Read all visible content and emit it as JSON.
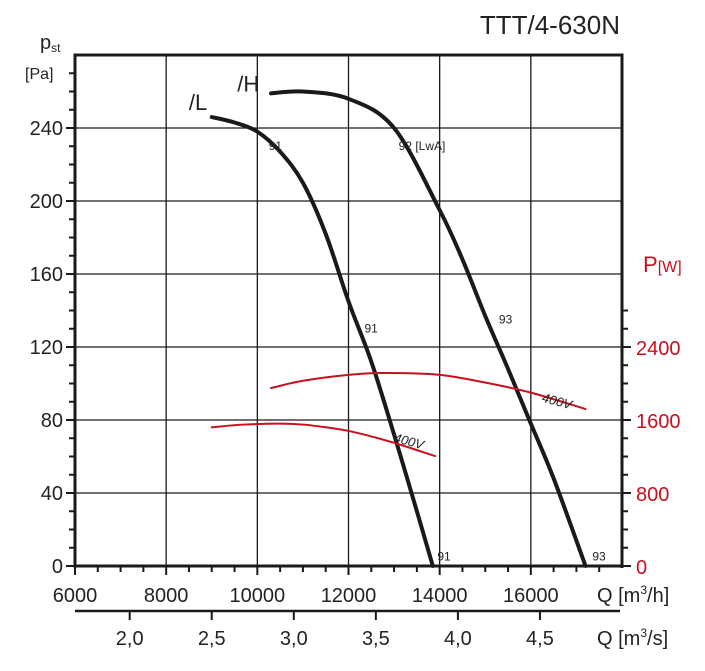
{
  "chart_data": {
    "type": "line",
    "title": "TTT/4-630N",
    "xlabel": "Q [m³/h]",
    "xlabel_secondary": "Q [m³/s]",
    "ylabel": "p st [Pa]",
    "ylabel_right": "P[W]",
    "xlim": [
      6000,
      18000
    ],
    "ylim": [
      0,
      280
    ],
    "ylim_right": [
      0,
      5600
    ],
    "grid": true,
    "x_ticks": [
      "6000",
      "8000",
      "10000",
      "12000",
      "14000",
      "16000"
    ],
    "x_tick_values": [
      6000,
      8000,
      10000,
      12000,
      14000,
      16000
    ],
    "x2_ticks": [
      "2,0",
      "2,5",
      "3,0",
      "3,5",
      "4,0",
      "4,5"
    ],
    "x2_tick_values_m3h": [
      7200,
      9000,
      10800,
      12600,
      14400,
      16200
    ],
    "y_ticks": [
      "0",
      "40",
      "80",
      "120",
      "160",
      "200",
      "240"
    ],
    "y_tick_values": [
      0,
      40,
      80,
      120,
      160,
      200,
      240
    ],
    "y_right_ticks": [
      "0",
      "800",
      "1600",
      "2400"
    ],
    "y_right_tick_values": [
      0,
      800,
      1600,
      2400
    ],
    "series": [
      {
        "name": "/L",
        "axis": "left",
        "color": "#1a1a1a",
        "x": [
          9000,
          9500,
          10000,
          10500,
          11000,
          11500,
          12000,
          12500,
          13000,
          13500,
          13850
        ],
        "y": [
          246,
          243,
          238,
          227,
          210,
          182,
          145,
          112,
          72,
          30,
          0
        ]
      },
      {
        "name": "/H",
        "axis": "left",
        "color": "#1a1a1a",
        "x": [
          10300,
          11000,
          12000,
          13000,
          14000,
          14500,
          15000,
          15500,
          16000,
          16500,
          17200
        ],
        "y": [
          259,
          260,
          256,
          240,
          195,
          168,
          137,
          108,
          78,
          48,
          0
        ]
      },
      {
        "name": "P /H 400V",
        "axis": "right",
        "color": "#c8101e",
        "x": [
          10300,
          11000,
          12000,
          12800,
          14000,
          15000,
          16000,
          17200
        ],
        "y": [
          1950,
          2030,
          2095,
          2115,
          2095,
          2010,
          1900,
          1720
        ]
      },
      {
        "name": "P /L 400V",
        "axis": "right",
        "color": "#c8101e",
        "x": [
          9000,
          9700,
          10500,
          11000,
          11500,
          12000,
          12500,
          13000,
          13500,
          13900
        ],
        "y": [
          1520,
          1550,
          1560,
          1550,
          1520,
          1480,
          1420,
          1350,
          1270,
          1205
        ]
      }
    ],
    "annotations": [
      {
        "text": "/L",
        "x": 8700,
        "y": 250,
        "kind": "curve-label"
      },
      {
        "text": "/H",
        "x": 9800,
        "y": 260,
        "kind": "curve-label"
      },
      {
        "text": "91",
        "x": 10250,
        "y": 228,
        "kind": "small"
      },
      {
        "text": "92 [LwA]",
        "x": 13100,
        "y": 228,
        "kind": "small"
      },
      {
        "text": "91",
        "x": 12350,
        "y": 128,
        "kind": "small"
      },
      {
        "text": "93",
        "x": 15300,
        "y": 133,
        "kind": "small"
      },
      {
        "text": "91",
        "x": 13950,
        "y": 3,
        "kind": "small"
      },
      {
        "text": "93",
        "x": 17350,
        "y": 3,
        "kind": "small"
      },
      {
        "text": "400V",
        "x": 16550,
        "y": 88,
        "kind": "red-rotated"
      },
      {
        "text": "400V",
        "x": 13300,
        "y": 66,
        "kind": "red-rotated"
      }
    ]
  },
  "labels": {
    "title": "TTT/4-630N",
    "y_left_label_p": "p",
    "y_left_label_sub": "st",
    "y_left_unit": "[Pa]",
    "y_right_label": "P",
    "y_right_unit": "[W]",
    "x_label": "Q [m",
    "x_label_sup": "3",
    "x_label_end": "/h]",
    "x2_label": "Q [m",
    "x2_label_sup": "3",
    "x2_label_end": "/s]"
  },
  "colors": {
    "red": "#c8101e",
    "black": "#1a1a1a"
  }
}
